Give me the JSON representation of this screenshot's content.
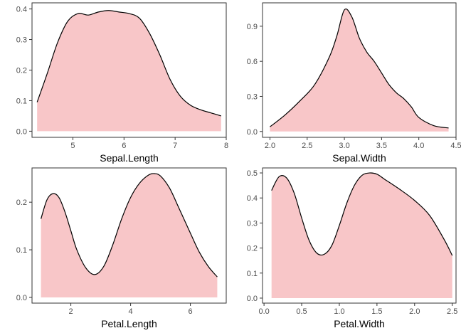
{
  "colors": {
    "fill": "#f8c6c8",
    "line": "#000000",
    "panel_border": "#333333",
    "tick": "#333333"
  },
  "chart_data": [
    {
      "type": "area",
      "title": "",
      "xlabel": "Sepal.Length",
      "ylabel": "",
      "xlim": [
        4.2,
        8.0
      ],
      "ylim": [
        -0.02,
        0.42
      ],
      "xticks": [
        5,
        6,
        7,
        8
      ],
      "xtick_labels": [
        "5",
        "6",
        "7",
        "8"
      ],
      "yticks": [
        0.0,
        0.1,
        0.2,
        0.3,
        0.4
      ],
      "ytick_labels": [
        "0.0",
        "0.1",
        "0.2",
        "0.3",
        "0.4"
      ],
      "grid": false,
      "x": [
        4.3,
        4.5,
        4.7,
        4.9,
        5.1,
        5.3,
        5.5,
        5.7,
        5.9,
        6.1,
        6.3,
        6.5,
        6.7,
        6.9,
        7.1,
        7.3,
        7.5,
        7.7,
        7.9
      ],
      "y": [
        0.095,
        0.19,
        0.29,
        0.36,
        0.385,
        0.38,
        0.39,
        0.395,
        0.39,
        0.385,
        0.37,
        0.32,
        0.25,
        0.17,
        0.115,
        0.085,
        0.07,
        0.06,
        0.05
      ]
    },
    {
      "type": "area",
      "title": "",
      "xlabel": "Sepal.Width",
      "ylabel": "",
      "xlim": [
        1.9,
        4.5
      ],
      "ylim": [
        -0.05,
        1.1
      ],
      "xticks": [
        2.0,
        2.5,
        3.0,
        3.5,
        4.0,
        4.5
      ],
      "xtick_labels": [
        "2.0",
        "2.5",
        "3.0",
        "3.5",
        "4.0",
        "4.5"
      ],
      "yticks": [
        0.0,
        0.3,
        0.6,
        0.9
      ],
      "ytick_labels": [
        "0.0",
        "0.3",
        "0.6",
        "0.9"
      ],
      "grid": false,
      "x": [
        2.0,
        2.2,
        2.4,
        2.6,
        2.8,
        2.9,
        3.0,
        3.1,
        3.2,
        3.3,
        3.4,
        3.5,
        3.6,
        3.7,
        3.8,
        3.9,
        4.0,
        4.2,
        4.4
      ],
      "y": [
        0.04,
        0.14,
        0.26,
        0.4,
        0.64,
        0.82,
        1.04,
        0.98,
        0.8,
        0.68,
        0.6,
        0.5,
        0.4,
        0.33,
        0.28,
        0.21,
        0.12,
        0.05,
        0.03
      ]
    },
    {
      "type": "area",
      "title": "",
      "xlabel": "Petal.Length",
      "ylabel": "",
      "xlim": [
        0.7,
        7.2
      ],
      "ylim": [
        -0.012,
        0.272
      ],
      "xticks": [
        2,
        4,
        6
      ],
      "xtick_labels": [
        "2",
        "4",
        "6"
      ],
      "yticks": [
        0.0,
        0.1,
        0.2
      ],
      "ytick_labels": [
        "0.0",
        "0.1",
        "0.2"
      ],
      "grid": false,
      "x": [
        1.0,
        1.2,
        1.4,
        1.6,
        1.8,
        2.0,
        2.2,
        2.5,
        2.8,
        3.1,
        3.4,
        3.7,
        4.0,
        4.3,
        4.6,
        4.8,
        5.0,
        5.3,
        5.6,
        6.0,
        6.3,
        6.6,
        6.9
      ],
      "y": [
        0.165,
        0.205,
        0.218,
        0.21,
        0.18,
        0.14,
        0.1,
        0.062,
        0.048,
        0.065,
        0.11,
        0.165,
        0.21,
        0.24,
        0.257,
        0.26,
        0.255,
        0.23,
        0.19,
        0.135,
        0.095,
        0.065,
        0.043
      ]
    },
    {
      "type": "area",
      "title": "",
      "xlabel": "Petal.Width",
      "ylabel": "",
      "xlim": [
        -0.02,
        2.55
      ],
      "ylim": [
        -0.02,
        0.52
      ],
      "xticks": [
        0.0,
        0.5,
        1.0,
        1.5,
        2.0,
        2.5
      ],
      "xtick_labels": [
        "0.0",
        "0.5",
        "1.0",
        "1.5",
        "2.0",
        "2.5"
      ],
      "yticks": [
        0.0,
        0.1,
        0.2,
        0.3,
        0.4,
        0.5
      ],
      "ytick_labels": [
        "0.0",
        "0.1",
        "0.2",
        "0.3",
        "0.4",
        "0.5"
      ],
      "grid": false,
      "x": [
        0.1,
        0.2,
        0.3,
        0.4,
        0.5,
        0.6,
        0.7,
        0.8,
        0.9,
        1.0,
        1.1,
        1.2,
        1.3,
        1.4,
        1.5,
        1.6,
        1.8,
        2.0,
        2.2,
        2.4,
        2.5
      ],
      "y": [
        0.43,
        0.485,
        0.48,
        0.42,
        0.32,
        0.23,
        0.18,
        0.175,
        0.21,
        0.29,
        0.38,
        0.45,
        0.49,
        0.5,
        0.495,
        0.475,
        0.435,
        0.39,
        0.33,
        0.23,
        0.17
      ]
    }
  ]
}
